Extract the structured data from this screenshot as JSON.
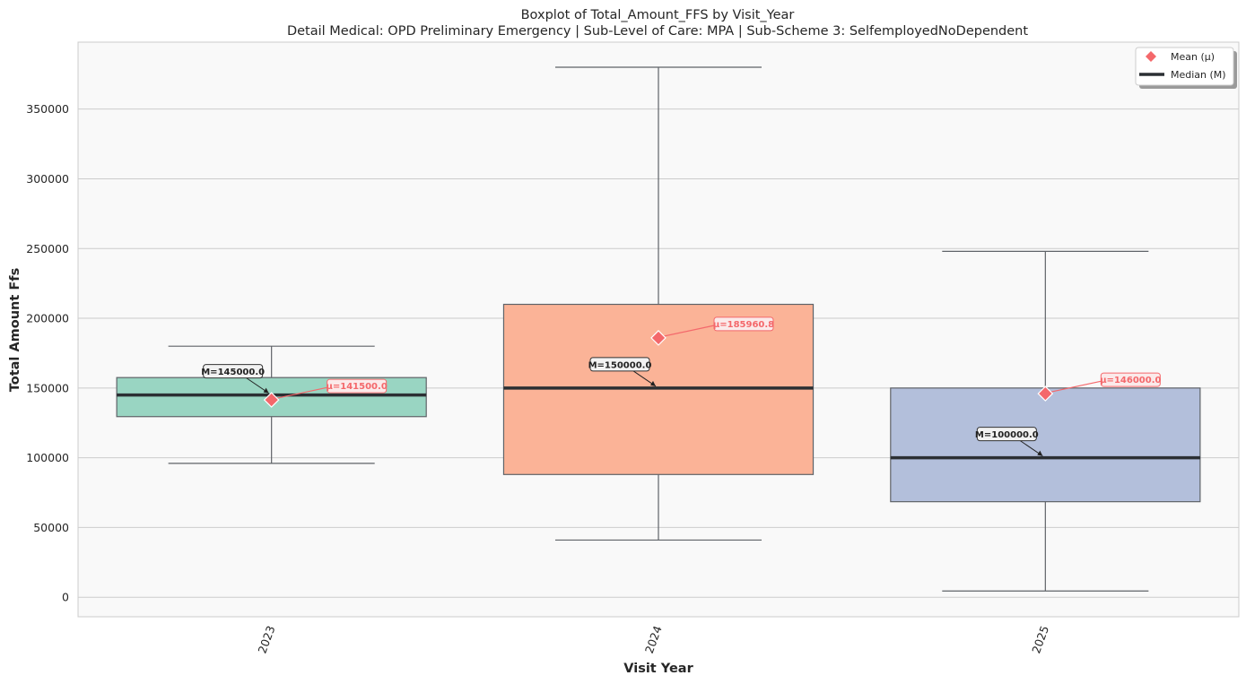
{
  "chart_data": {
    "type": "box",
    "title": "Boxplot of Total_Amount_FFS by Visit_Year",
    "subtitle": "Detail Medical: OPD Preliminary Emergency | Sub-Level of Care: MPA | Sub-Scheme 3: SelfemployedNoDependent",
    "xlabel": "Visit Year",
    "ylabel": "Total Amount Ffs",
    "categories": [
      "2023",
      "2024",
      "2025"
    ],
    "ylim": [
      -14000,
      398000
    ],
    "yticks": [
      0,
      50000,
      100000,
      150000,
      200000,
      250000,
      300000,
      350000
    ],
    "grid": "horizontal",
    "legend_position": "top-right",
    "legend": [
      {
        "label": "Mean (μ)",
        "kind": "mean"
      },
      {
        "label": "Median (M)",
        "kind": "median"
      }
    ],
    "boxes": [
      {
        "category": "2023",
        "whisker_low": 96000,
        "q1": 129500,
        "median": 145000,
        "q3": 157500,
        "whisker_high": 180000,
        "mean": 141500,
        "median_label": "M=145000.0",
        "mean_label": "μ=141500.0",
        "color": "#66c2a5"
      },
      {
        "category": "2024",
        "whisker_low": 41000,
        "q1": 88000,
        "median": 150000,
        "q3": 210000,
        "whisker_high": 380000,
        "mean": 185960.8,
        "median_label": "M=150000.0",
        "mean_label": "μ=185960.8",
        "color": "#fc8d62"
      },
      {
        "category": "2025",
        "whisker_low": 4500,
        "q1": 68500,
        "median": 100000,
        "q3": 150000,
        "whisker_high": 248000,
        "mean": 146000,
        "median_label": "M=100000.0",
        "mean_label": "μ=146000.0",
        "color": "#8da0cb"
      }
    ],
    "colors": {
      "mean": "#f4686b",
      "median": "#2b2f33",
      "whisker": "#5f6368",
      "plot_bg": "#f9f9f9",
      "grid": "#cccccc"
    }
  }
}
